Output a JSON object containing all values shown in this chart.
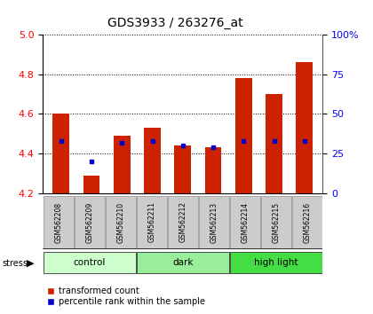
{
  "title": "GDS3933 / 263276_at",
  "samples": [
    "GSM562208",
    "GSM562209",
    "GSM562210",
    "GSM562211",
    "GSM562212",
    "GSM562213",
    "GSM562214",
    "GSM562215",
    "GSM562216"
  ],
  "transformed_counts": [
    4.6,
    4.29,
    4.49,
    4.53,
    4.44,
    4.43,
    4.78,
    4.7,
    4.86
  ],
  "percentile_ranks": [
    33,
    20,
    32,
    33,
    30,
    29,
    33,
    33,
    33
  ],
  "ylim": [
    4.2,
    5.0
  ],
  "y_left_ticks": [
    4.2,
    4.4,
    4.6,
    4.8,
    5.0
  ],
  "y_right_ticks": [
    0,
    25,
    50,
    75,
    100
  ],
  "groups": [
    {
      "label": "control",
      "start": 0,
      "end": 3,
      "color": "#ccffcc"
    },
    {
      "label": "dark",
      "start": 3,
      "end": 6,
      "color": "#99ee99"
    },
    {
      "label": "high light",
      "start": 6,
      "end": 9,
      "color": "#44dd44"
    }
  ],
  "bar_color": "#cc2200",
  "dot_color": "#0000cc",
  "bar_width": 0.55,
  "tick_label_bg": "#cccccc",
  "stress_label": "stress",
  "legend_items": [
    "transformed count",
    "percentile rank within the sample"
  ]
}
